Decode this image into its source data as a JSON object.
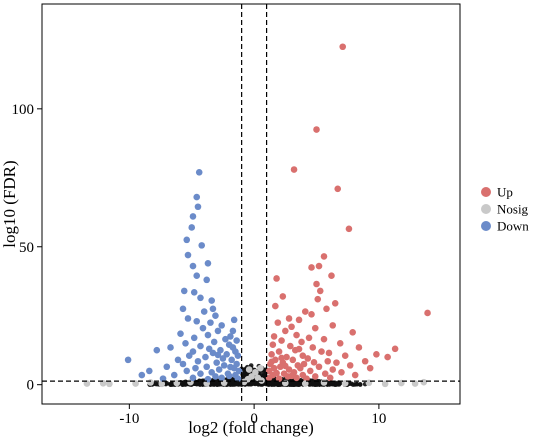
{
  "colors": {
    "up": "#d9706e",
    "nosig": "#c9c9c9",
    "down": "#6b8bc9",
    "background_cloud": "#111111"
  },
  "chart_data": {
    "type": "scatter",
    "title": "",
    "xlabel": "log2 (fold change)",
    "ylabel": "log10 (FDR)",
    "xlim": [
      -17,
      16.5
    ],
    "ylim": [
      -7,
      138
    ],
    "x_ticks": [
      -10,
      0,
      10
    ],
    "y_ticks": [
      0,
      50,
      100
    ],
    "grid": false,
    "legend_position": "right",
    "reference_lines": {
      "vertical_x": [
        -1,
        1
      ],
      "horizontal_y": [
        1.3
      ]
    },
    "series": [
      {
        "name": "Up",
        "color": "#d9706e",
        "points": [
          [
            7.1,
            122.5
          ],
          [
            5.0,
            92.5
          ],
          [
            3.2,
            78.0
          ],
          [
            6.7,
            71.0
          ],
          [
            7.6,
            56.5
          ],
          [
            5.6,
            46.5
          ],
          [
            5.2,
            43.0
          ],
          [
            4.6,
            42.5
          ],
          [
            6.2,
            39.5
          ],
          [
            1.8,
            38.5
          ],
          [
            5.0,
            36.5
          ],
          [
            5.3,
            34.0
          ],
          [
            2.3,
            32.0
          ],
          [
            5.1,
            31.0
          ],
          [
            6.5,
            29.5
          ],
          [
            1.7,
            28.5
          ],
          [
            5.8,
            27.5
          ],
          [
            4.1,
            26.5
          ],
          [
            13.9,
            26.0
          ],
          [
            4.6,
            25.5
          ],
          [
            2.8,
            24.0
          ],
          [
            3.6,
            23.5
          ],
          [
            1.9,
            22.5
          ],
          [
            6.3,
            21.5
          ],
          [
            3.0,
            21.0
          ],
          [
            4.9,
            20.5
          ],
          [
            2.5,
            19.5
          ],
          [
            7.9,
            19.0
          ],
          [
            3.4,
            18.0
          ],
          [
            1.6,
            17.5
          ],
          [
            4.4,
            17.0
          ],
          [
            5.6,
            16.5
          ],
          [
            2.2,
            16.0
          ],
          [
            3.8,
            15.5
          ],
          [
            6.9,
            15.0
          ],
          [
            1.5,
            14.5
          ],
          [
            2.9,
            14.0
          ],
          [
            4.7,
            13.5
          ],
          [
            8.4,
            13.5
          ],
          [
            11.3,
            13.0
          ],
          [
            3.3,
            12.5
          ],
          [
            5.4,
            12.0
          ],
          [
            2.0,
            12.0
          ],
          [
            6.0,
            11.5
          ],
          [
            9.8,
            11.0
          ],
          [
            1.4,
            11.0
          ],
          [
            3.9,
            10.5
          ],
          [
            7.3,
            10.5
          ],
          [
            2.6,
            10.0
          ],
          [
            4.3,
            9.5
          ],
          [
            10.7,
            10.0
          ],
          [
            1.7,
            9.0
          ],
          [
            3.1,
            9.0
          ],
          [
            5.9,
            8.5
          ],
          [
            8.9,
            8.5
          ],
          [
            2.3,
            8.0
          ],
          [
            6.6,
            8.0
          ],
          [
            1.3,
            7.5
          ],
          [
            4.0,
            7.5
          ],
          [
            3.5,
            7.0
          ],
          [
            7.7,
            7.0
          ],
          [
            2.1,
            6.5
          ],
          [
            5.2,
            6.5
          ],
          [
            1.6,
            6.0
          ],
          [
            3.7,
            6.0
          ],
          [
            9.3,
            6.0
          ],
          [
            2.8,
            5.5
          ],
          [
            6.3,
            5.5
          ],
          [
            1.2,
            5.0
          ],
          [
            4.5,
            5.0
          ],
          [
            3.2,
            4.5
          ],
          [
            7.0,
            4.5
          ],
          [
            2.4,
            4.0
          ],
          [
            5.7,
            4.0
          ],
          [
            1.5,
            3.5
          ],
          [
            3.9,
            3.5
          ],
          [
            8.1,
            3.5
          ],
          [
            2.7,
            3.0
          ],
          [
            4.9,
            3.0
          ],
          [
            1.2,
            2.5
          ],
          [
            6.1,
            2.5
          ],
          [
            3.4,
            2.5
          ],
          [
            2.0,
            2.2
          ],
          [
            4.2,
            2.2
          ],
          [
            1.8,
            4.2
          ],
          [
            2.5,
            6.8
          ],
          [
            3.0,
            3.2
          ],
          [
            1.4,
            8.3
          ],
          [
            2.2,
            9.7
          ],
          [
            3.6,
            12.9
          ],
          [
            4.8,
            8.1
          ]
        ]
      },
      {
        "name": "Nosig",
        "color": "#c9c9c9",
        "points": [
          [
            -12.1,
            0.5
          ],
          [
            -11.6,
            0.3
          ],
          [
            -9.5,
            0.4
          ],
          [
            -8.3,
            0.8
          ],
          [
            -7.4,
            0.3
          ],
          [
            -6.2,
            0.6
          ],
          [
            -5.1,
            0.9
          ],
          [
            -3.8,
            0.5
          ],
          [
            -2.4,
            0.7
          ],
          [
            -0.8,
            1.0
          ],
          [
            -0.5,
            2.0
          ],
          [
            -0.2,
            3.0
          ],
          [
            0.3,
            2.5
          ],
          [
            0.6,
            1.5
          ],
          [
            0.1,
            4.5
          ],
          [
            -0.4,
            5.5
          ],
          [
            0.5,
            6.0
          ],
          [
            2.5,
            0.6
          ],
          [
            4.1,
            0.4
          ],
          [
            5.6,
            0.8
          ],
          [
            7.3,
            0.5
          ],
          [
            9.2,
            0.7
          ],
          [
            10.5,
            0.3
          ],
          [
            11.8,
            0.6
          ],
          [
            12.9,
            0.4
          ],
          [
            13.6,
            0.9
          ],
          [
            -13.4,
            0.4
          ]
        ]
      },
      {
        "name": "Down",
        "color": "#6b8bc9",
        "points": [
          [
            -4.4,
            77.0
          ],
          [
            -4.6,
            68.0
          ],
          [
            -4.9,
            61.0
          ],
          [
            -4.5,
            64.5
          ],
          [
            -5.0,
            57.0
          ],
          [
            -5.4,
            52.5
          ],
          [
            -4.2,
            50.5
          ],
          [
            -5.3,
            47.0
          ],
          [
            -3.7,
            44.0
          ],
          [
            -4.9,
            43.0
          ],
          [
            -4.6,
            39.5
          ],
          [
            -3.8,
            38.0
          ],
          [
            -5.6,
            34.0
          ],
          [
            -4.8,
            33.5
          ],
          [
            -4.3,
            31.5
          ],
          [
            -3.4,
            30.5
          ],
          [
            -5.7,
            27.5
          ],
          [
            -4.0,
            26.5
          ],
          [
            -3.1,
            25.0
          ],
          [
            -5.3,
            24.0
          ],
          [
            -4.6,
            23.0
          ],
          [
            -3.5,
            22.5
          ],
          [
            -2.6,
            21.5
          ],
          [
            -1.6,
            23.5
          ],
          [
            -4.1,
            20.5
          ],
          [
            -2.9,
            19.5
          ],
          [
            -5.9,
            18.5
          ],
          [
            -3.7,
            18.0
          ],
          [
            -1.9,
            17.5
          ],
          [
            -4.8,
            17.0
          ],
          [
            -2.3,
            16.5
          ],
          [
            -1.4,
            16.0
          ],
          [
            -3.2,
            15.5
          ],
          [
            -5.5,
            15.0
          ],
          [
            -2.0,
            14.5
          ],
          [
            -4.3,
            14.0
          ],
          [
            -1.7,
            13.5
          ],
          [
            -3.6,
            13.0
          ],
          [
            -6.7,
            13.5
          ],
          [
            -2.7,
            12.5
          ],
          [
            -4.9,
            12.0
          ],
          [
            -1.5,
            12.0
          ],
          [
            -3.3,
            11.5
          ],
          [
            -7.8,
            12.5
          ],
          [
            -2.2,
            11.0
          ],
          [
            -5.2,
            10.5
          ],
          [
            -1.3,
            10.5
          ],
          [
            -3.9,
            10.0
          ],
          [
            -2.5,
            9.5
          ],
          [
            -6.1,
            9.0
          ],
          [
            -10.1,
            9.0
          ],
          [
            -1.8,
            9.0
          ],
          [
            -4.5,
            8.5
          ],
          [
            -3.0,
            8.0
          ],
          [
            -1.4,
            7.5
          ],
          [
            -5.7,
            7.5
          ],
          [
            -2.4,
            7.0
          ],
          [
            -3.8,
            6.5
          ],
          [
            -7.0,
            6.5
          ],
          [
            -1.6,
            6.0
          ],
          [
            -4.7,
            6.0
          ],
          [
            -2.8,
            5.5
          ],
          [
            -1.2,
            5.0
          ],
          [
            -5.4,
            5.0
          ],
          [
            -3.4,
            4.5
          ],
          [
            -8.4,
            5.0
          ],
          [
            -2.1,
            4.0
          ],
          [
            -4.3,
            4.0
          ],
          [
            -1.5,
            3.5
          ],
          [
            -6.4,
            3.5
          ],
          [
            -3.1,
            3.0
          ],
          [
            -9.0,
            3.5
          ],
          [
            -2.6,
            2.5
          ],
          [
            -4.9,
            2.5
          ],
          [
            -1.3,
            2.2
          ],
          [
            -7.3,
            2.2
          ],
          [
            -3.7,
            2.0
          ],
          [
            -2.0,
            3.2
          ],
          [
            -1.9,
            6.4
          ],
          [
            -2.9,
            10.8
          ],
          [
            -1.7,
            19.5
          ],
          [
            -3.3,
            27.5
          ]
        ]
      }
    ]
  },
  "legend": [
    {
      "label": "Up",
      "color": "#d9706e"
    },
    {
      "label": "Nosig",
      "color": "#c9c9c9"
    },
    {
      "label": "Down",
      "color": "#6b8bc9"
    }
  ]
}
